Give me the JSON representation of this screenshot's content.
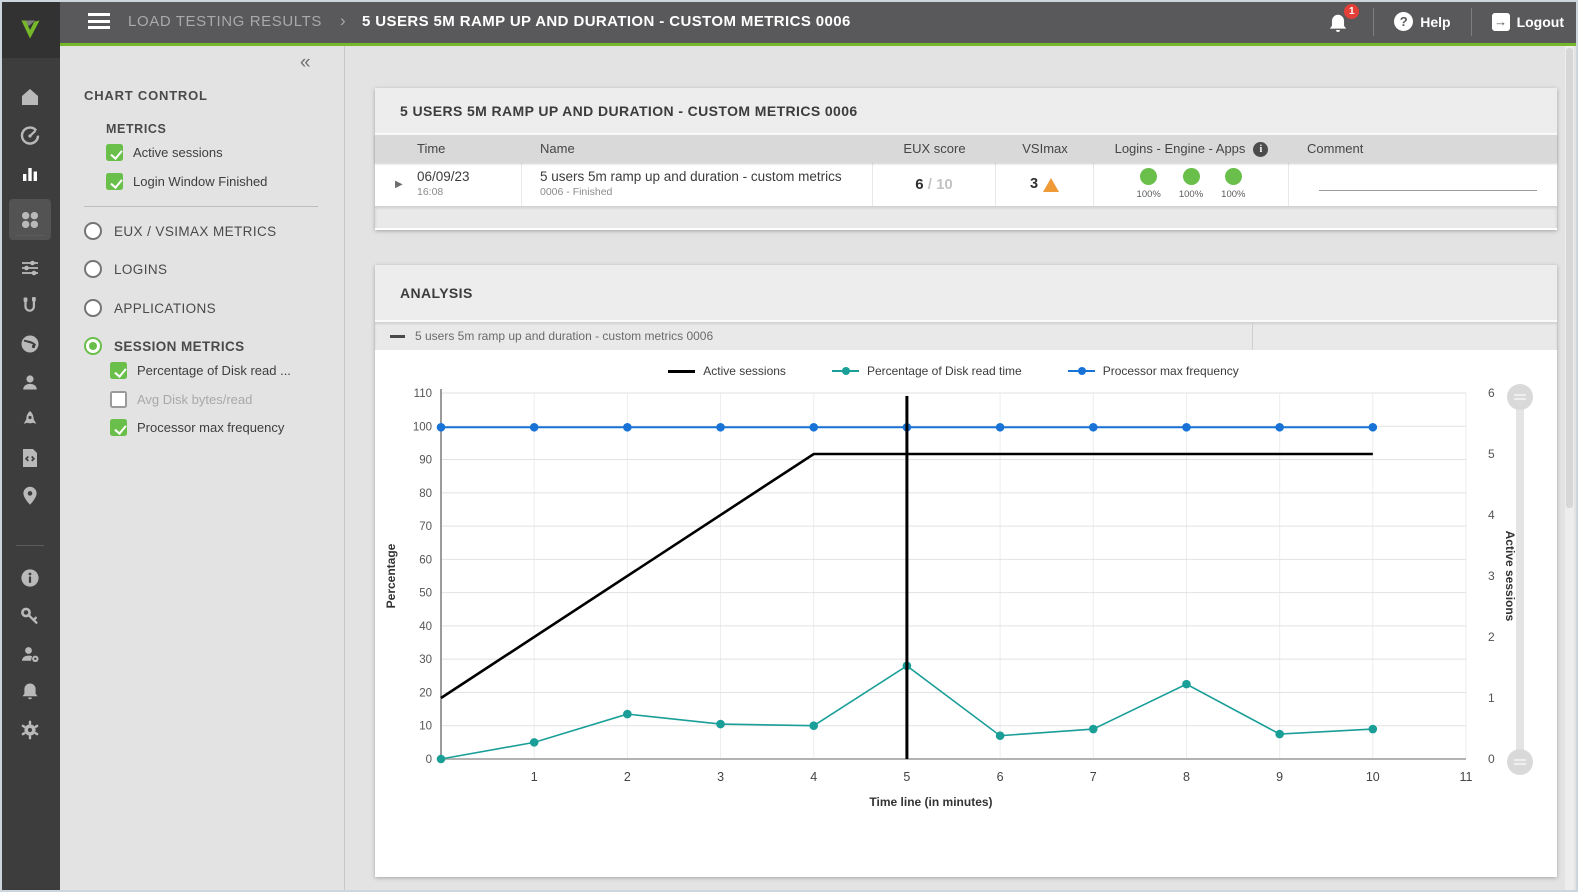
{
  "colors": {
    "brand_green": "#76b82a",
    "accent_green": "#6abf4b",
    "warning_orange": "#f09a37",
    "badge_red": "#e33e38",
    "topbar_gray": "#59595b",
    "sidebar_gray": "#3d3d3d",
    "series_black": "#000000",
    "series_teal": "#1a9e98",
    "series_blue": "#1973d7"
  },
  "header": {
    "breadcrumb": "LOAD TESTING RESULTS",
    "separator": "›",
    "title": "5 USERS 5M RAMP UP AND DURATION - CUSTOM METRICS 0006",
    "notification_count": "1",
    "help_glyph": "?",
    "help_label": "Help",
    "logout_glyph": "→",
    "logout_label": "Logout"
  },
  "sidebar": {
    "icons": [
      "home",
      "dashboard-gauge",
      "results-bar-chart",
      "applications-grid",
      "test-sliders",
      "connections-cable",
      "environment-globe",
      "users",
      "launcher-rocket",
      "scripts-code",
      "locations-pin",
      "info",
      "access-key",
      "user-management",
      "notifications-bell",
      "settings-gear"
    ],
    "active_icon": "results-bar-chart"
  },
  "chart_control": {
    "collapse_glyph": "«",
    "title": "CHART CONTROL",
    "metrics_title": "METRICS",
    "metrics": [
      {
        "label": "Active sessions",
        "checked": true
      },
      {
        "label": "Login Window Finished",
        "checked": true
      }
    ],
    "groups": [
      {
        "label": "EUX / VSIMAX METRICS",
        "selected": false
      },
      {
        "label": "LOGINS",
        "selected": false
      },
      {
        "label": "APPLICATIONS",
        "selected": false
      },
      {
        "label": "SESSION METRICS",
        "selected": true
      }
    ],
    "session_metrics": [
      {
        "label": "Percentage of Disk read ...",
        "checked": true,
        "disabled": false
      },
      {
        "label": "Avg Disk bytes/read",
        "checked": false,
        "disabled": true
      },
      {
        "label": "Processor max frequency",
        "checked": true,
        "disabled": false
      }
    ]
  },
  "results_panel": {
    "title": "5 USERS 5M RAMP UP AND DURATION - CUSTOM METRICS 0006",
    "columns": [
      "Time",
      "Name",
      "EUX score",
      "VSImax",
      "Logins - Engine - Apps",
      "Comment"
    ],
    "info_glyph": "i",
    "expand_glyph": "▶",
    "row": {
      "date": "06/09/23",
      "time": "16:08",
      "name": "5 users 5m ramp up and duration - custom metrics",
      "subname": "0006 - Finished",
      "eux_score": "6",
      "eux_max": "/ 10",
      "vsimax": "3",
      "warning_glyph": "!",
      "logins": [
        "100%",
        "100%",
        "100%"
      ],
      "comment": ""
    }
  },
  "analysis": {
    "title": "ANALYSIS",
    "series_selector": "5 users 5m ramp up and duration - custom metrics 0006"
  },
  "chart_data": {
    "type": "line",
    "title": "",
    "xlabel": "Time line (in minutes)",
    "ylabel_left": "Percentage",
    "ylabel_right": "Active sessions",
    "xlim": [
      0,
      11
    ],
    "ylim_left": [
      0,
      110
    ],
    "ylim_right": [
      0,
      6
    ],
    "x_ticks": [
      1,
      2,
      3,
      4,
      5,
      6,
      7,
      8,
      9,
      10,
      11
    ],
    "y_ticks_left": [
      0,
      10,
      20,
      30,
      40,
      50,
      60,
      70,
      80,
      90,
      100,
      110
    ],
    "y_ticks_right": [
      0,
      1,
      2,
      3,
      4,
      5,
      6
    ],
    "grid": true,
    "legend_position": "top-center",
    "series": [
      {
        "name": "Active sessions",
        "axis": "right",
        "color": "#000000",
        "marker": false,
        "width": 2.6,
        "x": [
          0,
          4,
          10
        ],
        "y": [
          1,
          5,
          5
        ]
      },
      {
        "name": "Percentage of Disk read time",
        "axis": "left",
        "color": "#1a9e98",
        "marker": true,
        "width": 1.6,
        "x": [
          0,
          1,
          2,
          3,
          4,
          5,
          6,
          7,
          8,
          9,
          10
        ],
        "y": [
          0,
          5,
          13.5,
          10.5,
          10,
          28,
          7,
          9,
          22.5,
          7.5,
          9
        ]
      },
      {
        "name": "Processor max frequency",
        "axis": "left",
        "color": "#1973d7",
        "marker": true,
        "width": 2,
        "x": [
          0,
          1,
          2,
          3,
          4,
          5,
          6,
          7,
          8,
          9,
          10
        ],
        "y": [
          99.7,
          99.7,
          99.7,
          99.7,
          99.7,
          99.7,
          99.7,
          99.7,
          99.7,
          99.7,
          99.7
        ]
      }
    ],
    "marker_line": {
      "x": 5,
      "color": "#000000",
      "width": 3
    }
  }
}
